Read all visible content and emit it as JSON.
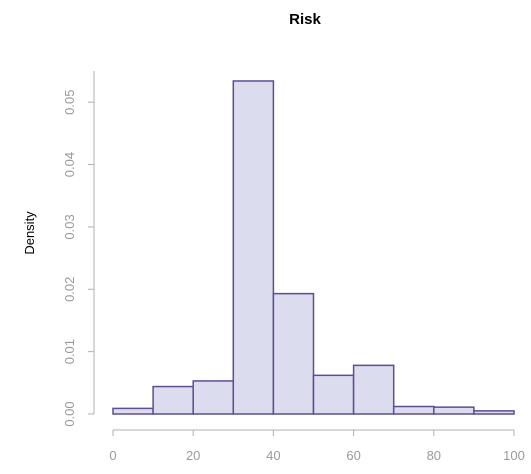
{
  "chart_data": {
    "type": "bar",
    "title": "Risk",
    "xlabel": "",
    "ylabel": "Density",
    "bin_edges": [
      0,
      10,
      20,
      30,
      40,
      50,
      60,
      70,
      80,
      90,
      100
    ],
    "values": [
      0.0009,
      0.0044,
      0.0053,
      0.0534,
      0.0193,
      0.0062,
      0.0078,
      0.0012,
      0.0011,
      0.0005
    ],
    "xlim": [
      0,
      100
    ],
    "ylim": [
      0,
      0.055
    ],
    "x_ticks": [
      "0",
      "20",
      "40",
      "60",
      "80",
      "100"
    ],
    "y_ticks": [
      "0.00",
      "0.01",
      "0.02",
      "0.03",
      "0.04",
      "0.05"
    ],
    "bar_fill": "#dcdcef",
    "bar_stroke": "#5d4e92",
    "grid": false
  }
}
